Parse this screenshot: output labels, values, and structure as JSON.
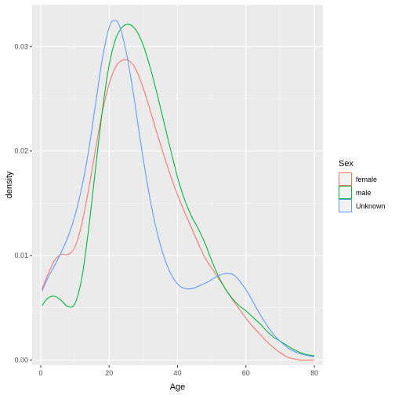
{
  "chart_data": {
    "type": "line",
    "xlabel": "Age",
    "ylabel": "density",
    "xlim": [
      -2.5,
      82.5
    ],
    "ylim": [
      -0.0005,
      0.034
    ],
    "x_ticks": [
      0,
      20,
      40,
      60,
      80
    ],
    "y_ticks": [
      0.0,
      0.01,
      0.02,
      0.03
    ],
    "y_tick_labels": [
      "0.00",
      "0.01",
      "0.02",
      "0.03"
    ],
    "grid": true,
    "legend": {
      "title": "Sex",
      "position": "right"
    },
    "series": [
      {
        "name": "female",
        "color": "#F8766D",
        "points": [
          [
            0.4,
            0.0068
          ],
          [
            2,
            0.0081
          ],
          [
            4,
            0.0095
          ],
          [
            6,
            0.0101
          ],
          [
            8,
            0.0101
          ],
          [
            10,
            0.0108
          ],
          [
            12,
            0.013
          ],
          [
            14,
            0.0163
          ],
          [
            16,
            0.0201
          ],
          [
            18,
            0.0237
          ],
          [
            20,
            0.0264
          ],
          [
            22,
            0.0281
          ],
          [
            24,
            0.0287
          ],
          [
            26,
            0.0286
          ],
          [
            28,
            0.0277
          ],
          [
            30,
            0.026
          ],
          [
            32,
            0.0239
          ],
          [
            34,
            0.0217
          ],
          [
            36,
            0.0196
          ],
          [
            38,
            0.0176
          ],
          [
            40,
            0.0158
          ],
          [
            42,
            0.0142
          ],
          [
            44,
            0.0127
          ],
          [
            46,
            0.0112
          ],
          [
            48,
            0.0098
          ],
          [
            50,
            0.0088
          ],
          [
            52,
            0.0078
          ],
          [
            54,
            0.0068
          ],
          [
            56,
            0.0058
          ],
          [
            58,
            0.0049
          ],
          [
            60,
            0.004
          ],
          [
            62,
            0.0032
          ],
          [
            64,
            0.0025
          ],
          [
            66,
            0.0018
          ],
          [
            68,
            0.0012
          ],
          [
            70,
            0.0007
          ],
          [
            72,
            0.0003
          ],
          [
            74,
            0.0001
          ],
          [
            76,
            0.0
          ],
          [
            78,
            0.0
          ],
          [
            80,
            0.0
          ]
        ]
      },
      {
        "name": "male",
        "color": "#00BA38",
        "points": [
          [
            0.4,
            0.0052
          ],
          [
            2,
            0.0059
          ],
          [
            4,
            0.0061
          ],
          [
            6,
            0.0057
          ],
          [
            8,
            0.0051
          ],
          [
            10,
            0.0054
          ],
          [
            12,
            0.0078
          ],
          [
            14,
            0.0125
          ],
          [
            16,
            0.0182
          ],
          [
            18,
            0.0238
          ],
          [
            20,
            0.0282
          ],
          [
            22,
            0.0308
          ],
          [
            24,
            0.0319
          ],
          [
            26,
            0.0321
          ],
          [
            28,
            0.0315
          ],
          [
            30,
            0.0301
          ],
          [
            32,
            0.028
          ],
          [
            34,
            0.0255
          ],
          [
            36,
            0.0228
          ],
          [
            38,
            0.0201
          ],
          [
            40,
            0.0175
          ],
          [
            42,
            0.0154
          ],
          [
            44,
            0.0138
          ],
          [
            46,
            0.0126
          ],
          [
            48,
            0.0112
          ],
          [
            50,
            0.0095
          ],
          [
            52,
            0.008
          ],
          [
            54,
            0.0068
          ],
          [
            56,
            0.0059
          ],
          [
            58,
            0.0052
          ],
          [
            60,
            0.0047
          ],
          [
            62,
            0.0041
          ],
          [
            64,
            0.0035
          ],
          [
            66,
            0.0028
          ],
          [
            68,
            0.0022
          ],
          [
            70,
            0.0018
          ],
          [
            72,
            0.0014
          ],
          [
            74,
            0.001
          ],
          [
            76,
            0.0007
          ],
          [
            78,
            0.0005
          ],
          [
            80,
            0.0004
          ]
        ]
      },
      {
        "name": "Unknown",
        "color": "#619CFF",
        "points": [
          [
            0.4,
            0.0066
          ],
          [
            2,
            0.0078
          ],
          [
            4,
            0.009
          ],
          [
            6,
            0.0103
          ],
          [
            8,
            0.0118
          ],
          [
            10,
            0.0138
          ],
          [
            12,
            0.0165
          ],
          [
            14,
            0.02
          ],
          [
            16,
            0.0244
          ],
          [
            18,
            0.0288
          ],
          [
            20,
            0.0318
          ],
          [
            21.5,
            0.0325
          ],
          [
            23,
            0.032
          ],
          [
            25,
            0.0295
          ],
          [
            27,
            0.0257
          ],
          [
            29,
            0.0213
          ],
          [
            31,
            0.0172
          ],
          [
            33,
            0.0137
          ],
          [
            35,
            0.011
          ],
          [
            37,
            0.009
          ],
          [
            39,
            0.0077
          ],
          [
            41,
            0.007
          ],
          [
            43,
            0.0068
          ],
          [
            45,
            0.0069
          ],
          [
            47,
            0.0072
          ],
          [
            49,
            0.0075
          ],
          [
            51,
            0.0079
          ],
          [
            53,
            0.0082
          ],
          [
            55,
            0.0083
          ],
          [
            57,
            0.008
          ],
          [
            59,
            0.0072
          ],
          [
            61,
            0.0062
          ],
          [
            63,
            0.005
          ],
          [
            65,
            0.0039
          ],
          [
            67,
            0.0029
          ],
          [
            69,
            0.0021
          ],
          [
            71,
            0.0015
          ],
          [
            73,
            0.001
          ],
          [
            75,
            0.0007
          ],
          [
            77,
            0.0005
          ],
          [
            80,
            0.0003
          ]
        ]
      }
    ]
  }
}
